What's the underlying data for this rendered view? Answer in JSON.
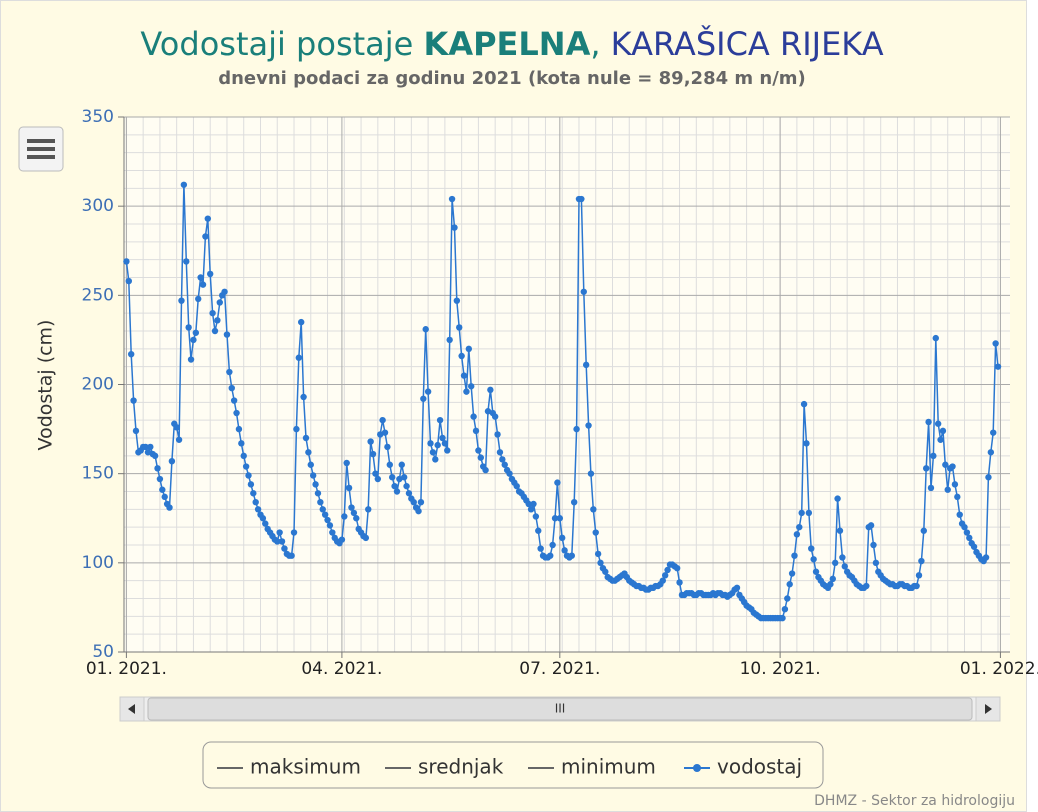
{
  "chart_data": {
    "type": "line",
    "title_parts": [
      "Vodostaji postaje ",
      "KAPELNA",
      ", ",
      "KARAŠICA RIJEKA"
    ],
    "subtitle": "dnevni podaci za godinu 2021 (kota nule = 89,284 m n/m)",
    "y_label": "Vodostaj (cm)",
    "ylim": [
      50,
      350
    ],
    "yticks": [
      50,
      100,
      150,
      200,
      250,
      300,
      350
    ],
    "xlim": [
      -1,
      369
    ],
    "xticks": [
      {
        "value": 0,
        "label": "01. 2021."
      },
      {
        "value": 90,
        "label": "04. 2021."
      },
      {
        "value": 181,
        "label": "07. 2021."
      },
      {
        "value": 273,
        "label": "10. 2021."
      },
      {
        "value": 365,
        "label": "01. 2022."
      }
    ],
    "grid": true,
    "series": [
      {
        "name": "maksimum",
        "color": "#666666"
      },
      {
        "name": "srednjak",
        "color": "#666666"
      },
      {
        "name": "minimum",
        "color": "#666666"
      },
      {
        "name": "vodostaj",
        "color": "#2b77d0",
        "values": [
          269,
          258,
          217,
          191,
          174,
          162,
          163,
          165,
          165,
          162,
          165,
          161,
          160,
          153,
          147,
          141,
          137,
          133,
          131,
          157,
          178,
          176,
          169,
          247,
          312,
          269,
          232,
          214,
          225,
          229,
          248,
          260,
          256,
          283,
          293,
          262,
          240,
          230,
          236,
          246,
          250,
          252,
          228,
          207,
          198,
          191,
          184,
          175,
          167,
          160,
          154,
          149,
          144,
          139,
          134,
          130,
          127,
          125,
          122,
          119,
          117,
          115,
          113,
          112,
          117,
          112,
          108,
          105,
          104,
          104,
          117,
          175,
          215,
          235,
          193,
          170,
          162,
          155,
          149,
          144,
          139,
          134,
          130,
          127,
          124,
          121,
          117,
          114,
          112,
          111,
          113,
          126,
          156,
          142,
          131,
          128,
          125,
          119,
          117,
          115,
          114,
          130,
          168,
          161,
          150,
          147,
          172,
          180,
          173,
          165,
          155,
          148,
          143,
          140,
          147,
          155,
          148,
          143,
          139,
          136,
          134,
          131,
          129,
          134,
          192,
          231,
          196,
          167,
          162,
          158,
          166,
          180,
          170,
          167,
          163,
          225,
          304,
          288,
          247,
          232,
          216,
          205,
          196,
          220,
          199,
          182,
          174,
          163,
          159,
          154,
          152,
          185,
          197,
          184,
          182,
          172,
          162,
          158,
          155,
          152,
          150,
          147,
          145,
          143,
          140,
          139,
          137,
          135,
          133,
          130,
          133,
          126,
          118,
          108,
          104,
          103,
          103,
          104,
          110,
          125,
          145,
          125,
          114,
          107,
          104,
          103,
          104,
          134,
          175,
          304,
          304,
          252,
          211,
          177,
          150,
          130,
          117,
          105,
          100,
          97,
          95,
          92,
          91,
          90,
          90,
          91,
          92,
          93,
          94,
          92,
          90,
          89,
          88,
          87,
          87,
          86,
          86,
          85,
          85,
          86,
          86,
          87,
          87,
          88,
          90,
          93,
          96,
          99,
          99,
          98,
          97,
          89,
          82,
          82,
          83,
          83,
          83,
          82,
          82,
          83,
          83,
          82,
          82,
          82,
          82,
          83,
          82,
          83,
          83,
          82,
          82,
          81,
          82,
          83,
          85,
          86,
          82,
          80,
          78,
          76,
          75,
          74,
          72,
          71,
          70,
          69,
          69,
          69,
          69,
          69,
          69,
          69,
          69,
          69,
          69,
          74,
          80,
          88,
          94,
          104,
          116,
          120,
          128,
          189,
          167,
          128,
          108,
          102,
          95,
          92,
          90,
          88,
          87,
          86,
          88,
          91,
          100,
          136,
          118,
          103,
          98,
          95,
          93,
          92,
          90,
          88,
          87,
          86,
          86,
          87,
          120,
          121,
          110,
          100,
          95,
          93,
          91,
          90,
          89,
          88,
          88,
          87,
          87,
          88,
          88,
          87,
          87,
          86,
          86,
          87,
          87,
          93,
          101,
          118,
          153,
          179,
          142,
          160,
          226,
          178,
          169,
          174,
          155,
          141,
          153,
          154,
          144,
          137,
          127,
          122,
          120,
          117,
          114,
          111,
          109,
          106,
          104,
          102,
          101,
          103,
          148,
          162,
          173,
          223,
          210
        ]
      }
    ],
    "scrollbar_label": "III",
    "credit": "DHMZ - Sektor za hidrologiju"
  }
}
